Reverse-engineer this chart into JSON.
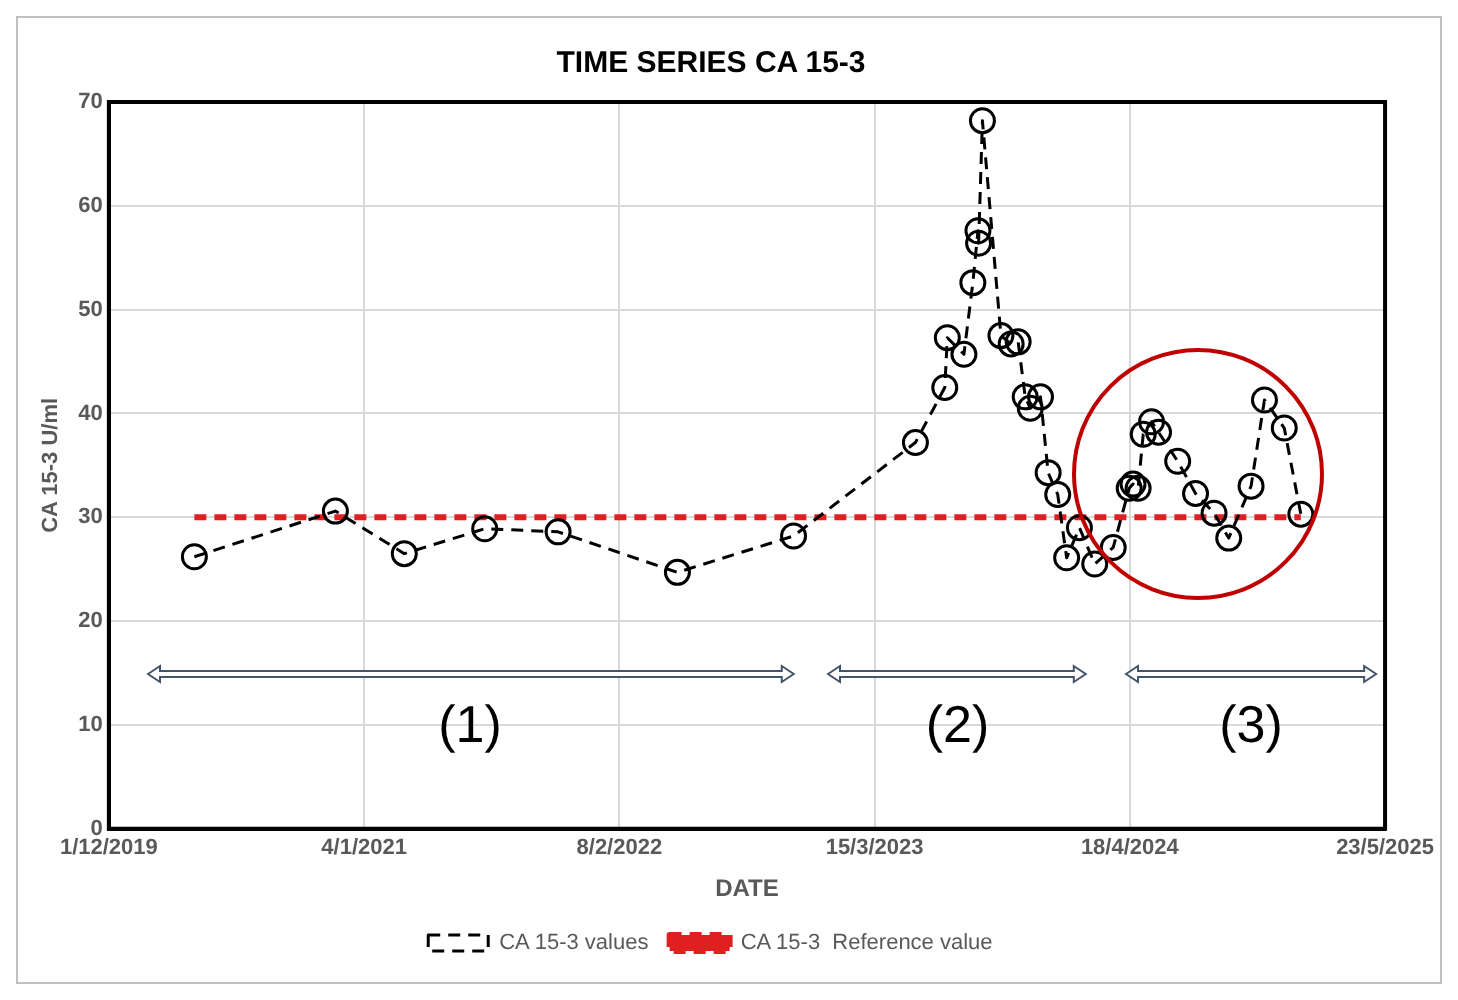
{
  "chart_data": {
    "type": "line",
    "title": "TIME SERIES CA 15-3",
    "xlabel": "DATE",
    "ylabel": "CA 15-3 U/ml",
    "xlim": [
      "2019-12-01",
      "2025-05-23"
    ],
    "xticks": [
      {
        "value": "2019-12-01",
        "label": "1/12/2019"
      },
      {
        "value": "2021-01-04",
        "label": "4/1/2021"
      },
      {
        "value": "2022-02-08",
        "label": "8/2/2022"
      },
      {
        "value": "2023-03-15",
        "label": "15/3/2023"
      },
      {
        "value": "2024-04-18",
        "label": "18/4/2024"
      },
      {
        "value": "2025-05-23",
        "label": "23/5/2025"
      }
    ],
    "ylim": [
      0,
      70
    ],
    "yticks": [
      0,
      10,
      20,
      30,
      40,
      50,
      60,
      70
    ],
    "grid": true,
    "legend": "bottom",
    "series": [
      {
        "name": "CA 15-3 values",
        "color": "#000000",
        "marker": "circle",
        "line_style": "dashed",
        "x": [
          "2020-04-13",
          "2020-11-20",
          "2021-03-08",
          "2021-07-12",
          "2021-11-04",
          "2022-05-10",
          "2022-11-08",
          "2023-05-18",
          "2023-07-03",
          "2023-07-07",
          "2023-08-02",
          "2023-08-16",
          "2023-08-24",
          "2023-08-25",
          "2023-08-31",
          "2023-09-29",
          "2023-10-15",
          "2023-10-26",
          "2023-11-06",
          "2023-11-14",
          "2023-11-30",
          "2023-12-12",
          "2023-12-27",
          "2024-01-10",
          "2024-01-30",
          "2024-02-23",
          "2024-03-23",
          "2024-04-17",
          "2024-04-23",
          "2024-05-01",
          "2024-05-09",
          "2024-05-22",
          "2024-06-02",
          "2024-07-02",
          "2024-07-30",
          "2024-08-28",
          "2024-09-20",
          "2024-10-25",
          "2024-11-15",
          "2024-12-16",
          "2025-01-11"
        ],
        "values": [
          26.2,
          30.6,
          26.5,
          28.9,
          28.6,
          24.7,
          28.2,
          37.2,
          42.5,
          47.3,
          45.7,
          52.6,
          57.6,
          56.4,
          68.2,
          47.5,
          46.7,
          46.9,
          41.6,
          40.5,
          41.6,
          34.3,
          32.2,
          26.1,
          29.0,
          25.5,
          27.1,
          32.8,
          33.2,
          32.8,
          38.0,
          39.2,
          38.2,
          35.4,
          32.3,
          30.4,
          28.0,
          33.0,
          41.3,
          38.6,
          30.3
        ]
      },
      {
        "name": "CA 15-3  Reference value",
        "color": "#e02020",
        "marker": "none",
        "line_style": "dashed",
        "x": [
          "2020-04-13",
          "2025-01-11"
        ],
        "values": [
          30,
          30
        ]
      }
    ],
    "annotations": [
      "(1)",
      "(2)",
      "(3)"
    ]
  }
}
